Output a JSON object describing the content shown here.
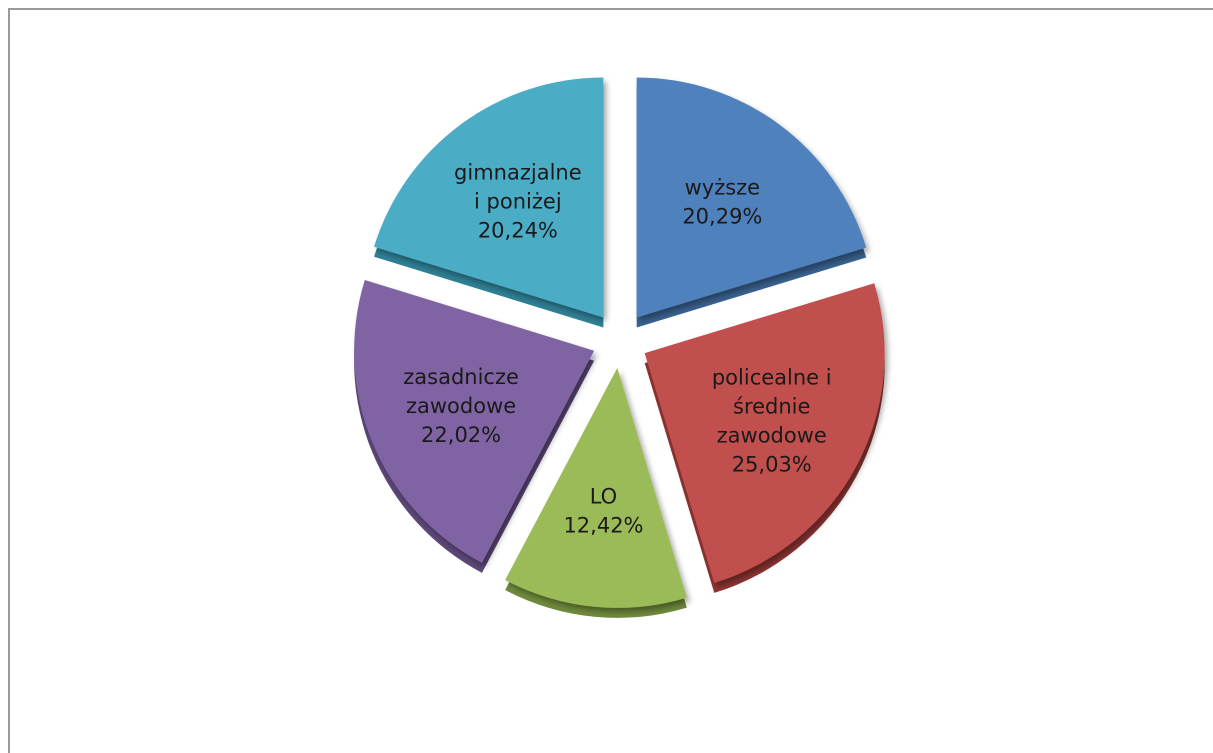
{
  "chart_data": {
    "type": "pie",
    "title": "",
    "slices": [
      {
        "label_lines": [
          "wyższe"
        ],
        "value_text": "20,29%",
        "value": 20.29,
        "color": "#4f81bd",
        "side": "#3a6391"
      },
      {
        "label_lines": [
          "policealne i",
          "średnie",
          "zawodowe"
        ],
        "value_text": "25,03%",
        "value": 25.03,
        "color": "#c0504d",
        "side": "#8e3432"
      },
      {
        "label_lines": [
          "LO"
        ],
        "value_text": "12,42%",
        "value": 12.42,
        "color": "#9bbb59",
        "side": "#6f8a3c"
      },
      {
        "label_lines": [
          "zasadnicze",
          "zawodowe"
        ],
        "value_text": "22,02%",
        "value": 22.02,
        "color": "#8064a2",
        "side": "#5c4778"
      },
      {
        "label_lines": [
          "gimnazjalne",
          "i poniżej"
        ],
        "value_text": "20,24%",
        "value": 20.24,
        "color": "#4bacc6",
        "side": "#2f8095"
      }
    ],
    "legend": "none",
    "start_angle": "top",
    "exploded": true
  }
}
